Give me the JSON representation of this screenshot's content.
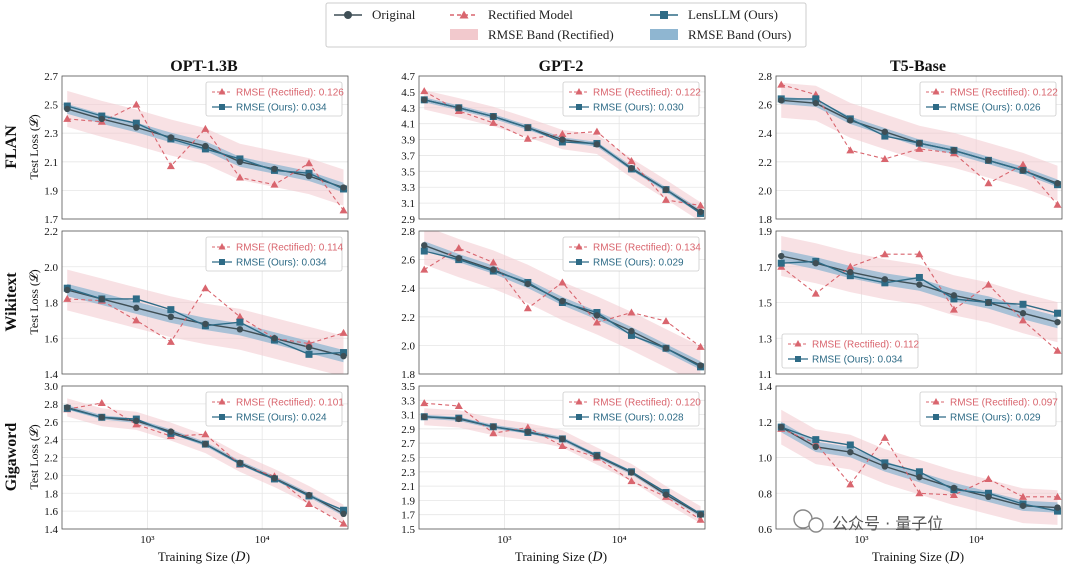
{
  "legend": {
    "original": "Original",
    "rectified": "Rectified Model",
    "lens": "LensLLM (Ours)",
    "band_rect": "RMSE Band (Rectified)",
    "band_ours": "RMSE Band (Ours)"
  },
  "columns": [
    "OPT-1.3B",
    "GPT-2",
    "T5-Base"
  ],
  "rows": [
    "FLAN",
    "Wikitext",
    "Gigaword"
  ],
  "y_label": "Test Loss (𝓛)",
  "x_label": "Training Size (𝐷)",
  "x_tick_labels": [
    "10³",
    "10⁴"
  ],
  "watermark": "公众号 · 量子位",
  "colors": {
    "original": "#3f4f56",
    "rectified": "#d9656e",
    "lens": "#2e6b86",
    "band_rect": "#f2c9cd",
    "band_ours": "#8fb6d1"
  },
  "chart_data": [
    {
      "type": "line",
      "row": "FLAN",
      "col": "OPT-1.3B",
      "ylim": [
        1.7,
        2.7
      ],
      "yticks": [
        "1.7",
        "1.9",
        "2.1",
        "2.3",
        "2.5",
        "2.7"
      ],
      "rmse_rect_label": "RMSE (Rectified): 0.126",
      "rmse_ours_label": "RMSE (Ours): 0.034",
      "legend_loc": "top-right",
      "band_rect": 0.126,
      "band_ours": 0.034,
      "x": [
        200,
        400,
        800,
        1600,
        3200,
        6400,
        12800,
        25600,
        51200
      ],
      "series": [
        {
          "name": "Original",
          "values": [
            2.47,
            2.4,
            2.34,
            2.27,
            2.21,
            2.1,
            2.05,
            2.0,
            1.92
          ]
        },
        {
          "name": "Rectified Model",
          "values": [
            2.4,
            2.38,
            2.5,
            2.07,
            2.33,
            1.99,
            1.94,
            2.09,
            1.76
          ]
        },
        {
          "name": "LensLLM (Ours)",
          "values": [
            2.49,
            2.42,
            2.37,
            2.26,
            2.19,
            2.12,
            2.04,
            2.02,
            1.91
          ]
        }
      ]
    },
    {
      "type": "line",
      "row": "FLAN",
      "col": "GPT-2",
      "ylim": [
        2.9,
        4.7
      ],
      "yticks": [
        "2.9",
        "3.1",
        "3.3",
        "3.5",
        "3.7",
        "3.9",
        "4.1",
        "4.3",
        "4.5",
        "4.7"
      ],
      "rmse_rect_label": "RMSE (Rectified): 0.122",
      "rmse_ours_label": "RMSE (Ours): 0.030",
      "legend_loc": "top-right",
      "band_rect": 0.122,
      "band_ours": 0.03,
      "x": [
        200,
        400,
        800,
        1600,
        3200,
        6400,
        12800,
        25600,
        51200
      ],
      "series": [
        {
          "name": "Original",
          "values": [
            4.4,
            4.3,
            4.19,
            4.05,
            3.9,
            3.84,
            3.54,
            3.27,
            2.99
          ]
        },
        {
          "name": "Rectified Model",
          "values": [
            4.51,
            4.26,
            4.11,
            3.91,
            3.97,
            4.0,
            3.63,
            3.14,
            3.07
          ]
        },
        {
          "name": "LensLLM (Ours)",
          "values": [
            4.4,
            4.3,
            4.19,
            4.05,
            3.87,
            3.85,
            3.53,
            3.27,
            2.97
          ]
        }
      ]
    },
    {
      "type": "line",
      "row": "FLAN",
      "col": "T5-Base",
      "ylim": [
        1.8,
        2.8
      ],
      "yticks": [
        "1.8",
        "2.0",
        "2.2",
        "2.4",
        "2.6",
        "2.8"
      ],
      "rmse_rect_label": "RMSE (Rectified): 0.122",
      "rmse_ours_label": "RMSE (Ours): 0.026",
      "legend_loc": "top-right",
      "band_rect": 0.122,
      "band_ours": 0.026,
      "x": [
        200,
        400,
        800,
        1600,
        3200,
        6400,
        12800,
        25600,
        51200
      ],
      "series": [
        {
          "name": "Original",
          "values": [
            2.63,
            2.61,
            2.49,
            2.41,
            2.33,
            2.28,
            2.21,
            2.14,
            2.05
          ]
        },
        {
          "name": "Rectified Model",
          "values": [
            2.74,
            2.67,
            2.28,
            2.22,
            2.29,
            2.26,
            2.05,
            2.18,
            1.9
          ]
        },
        {
          "name": "LensLLM (Ours)",
          "values": [
            2.64,
            2.64,
            2.5,
            2.38,
            2.33,
            2.28,
            2.21,
            2.14,
            2.04
          ]
        }
      ]
    },
    {
      "type": "line",
      "row": "Wikitext",
      "col": "OPT-1.3B",
      "ylim": [
        1.4,
        2.2
      ],
      "yticks": [
        "1.4",
        "1.6",
        "1.8",
        "2.0",
        "2.2"
      ],
      "rmse_rect_label": "RMSE (Rectified): 0.114",
      "rmse_ours_label": "RMSE (Ours): 0.034",
      "legend_loc": "top-right",
      "band_rect": 0.114,
      "band_ours": 0.034,
      "x": [
        200,
        400,
        800,
        1600,
        3200,
        6400,
        12800,
        25600,
        51200
      ],
      "series": [
        {
          "name": "Original",
          "values": [
            1.87,
            1.82,
            1.77,
            1.72,
            1.68,
            1.65,
            1.6,
            1.55,
            1.5
          ]
        },
        {
          "name": "Rectified Model",
          "values": [
            1.82,
            1.81,
            1.7,
            1.58,
            1.88,
            1.72,
            1.6,
            1.57,
            1.63
          ]
        },
        {
          "name": "LensLLM (Ours)",
          "values": [
            1.88,
            1.82,
            1.82,
            1.76,
            1.67,
            1.69,
            1.59,
            1.51,
            1.52
          ]
        }
      ]
    },
    {
      "type": "line",
      "row": "Wikitext",
      "col": "GPT-2",
      "ylim": [
        1.8,
        2.8
      ],
      "yticks": [
        "1.8",
        "2.0",
        "2.2",
        "2.4",
        "2.6",
        "2.8"
      ],
      "rmse_rect_label": "RMSE (Rectified): 0.134",
      "rmse_ours_label": "RMSE (Ours): 0.029",
      "legend_loc": "top-right",
      "band_rect": 0.134,
      "band_ours": 0.029,
      "x": [
        200,
        400,
        800,
        1600,
        3200,
        6400,
        12800,
        25600,
        51200
      ],
      "series": [
        {
          "name": "Original",
          "values": [
            2.7,
            2.61,
            2.53,
            2.43,
            2.31,
            2.21,
            2.1,
            1.98,
            1.86
          ]
        },
        {
          "name": "Rectified Model",
          "values": [
            2.53,
            2.68,
            2.58,
            2.26,
            2.44,
            2.16,
            2.23,
            2.17,
            1.99
          ]
        },
        {
          "name": "LensLLM (Ours)",
          "values": [
            2.66,
            2.6,
            2.52,
            2.44,
            2.3,
            2.23,
            2.07,
            1.98,
            1.85
          ]
        }
      ]
    },
    {
      "type": "line",
      "row": "Wikitext",
      "col": "T5-Base",
      "ylim": [
        1.1,
        1.9
      ],
      "yticks": [
        "1.1",
        "1.3",
        "1.5",
        "1.7",
        "1.9"
      ],
      "rmse_rect_label": "RMSE (Rectified): 0.112",
      "rmse_ours_label": "RMSE (Ours): 0.034",
      "legend_loc": "bottom-left",
      "band_rect": 0.112,
      "band_ours": 0.034,
      "x": [
        200,
        400,
        800,
        1600,
        3200,
        6400,
        12800,
        25600,
        51200
      ],
      "series": [
        {
          "name": "Original",
          "values": [
            1.76,
            1.72,
            1.67,
            1.63,
            1.6,
            1.54,
            1.5,
            1.44,
            1.39
          ]
        },
        {
          "name": "Rectified Model",
          "values": [
            1.7,
            1.55,
            1.7,
            1.77,
            1.77,
            1.46,
            1.6,
            1.4,
            1.23
          ]
        },
        {
          "name": "LensLLM (Ours)",
          "values": [
            1.72,
            1.73,
            1.65,
            1.61,
            1.64,
            1.52,
            1.5,
            1.49,
            1.44
          ]
        }
      ]
    },
    {
      "type": "line",
      "row": "Gigaword",
      "col": "OPT-1.3B",
      "ylim": [
        1.4,
        3.0
      ],
      "yticks": [
        "1.4",
        "1.6",
        "1.8",
        "2.0",
        "2.2",
        "2.4",
        "2.6",
        "2.8",
        "3.0"
      ],
      "rmse_rect_label": "RMSE (Rectified): 0.101",
      "rmse_ours_label": "RMSE (Ours): 0.024",
      "legend_loc": "top-right",
      "band_rect": 0.101,
      "band_ours": 0.024,
      "x": [
        200,
        400,
        800,
        1600,
        3200,
        6400,
        12800,
        25600,
        51200
      ],
      "series": [
        {
          "name": "Original",
          "values": [
            2.76,
            2.65,
            2.61,
            2.49,
            2.35,
            2.14,
            1.97,
            1.78,
            1.57
          ]
        },
        {
          "name": "Rectified Model",
          "values": [
            2.74,
            2.81,
            2.57,
            2.44,
            2.46,
            2.12,
            1.99,
            1.68,
            1.46
          ]
        },
        {
          "name": "LensLLM (Ours)",
          "values": [
            2.75,
            2.65,
            2.63,
            2.47,
            2.35,
            2.13,
            1.96,
            1.77,
            1.61
          ]
        }
      ]
    },
    {
      "type": "line",
      "row": "Gigaword",
      "col": "GPT-2",
      "ylim": [
        1.5,
        3.5
      ],
      "yticks": [
        "1.5",
        "1.7",
        "1.9",
        "2.1",
        "2.3",
        "2.5",
        "2.7",
        "2.9",
        "3.1",
        "3.3",
        "3.5"
      ],
      "rmse_rect_label": "RMSE (Rectified): 0.120",
      "rmse_ours_label": "RMSE (Ours): 0.028",
      "legend_loc": "top-right",
      "band_rect": 0.12,
      "band_ours": 0.028,
      "x": [
        200,
        400,
        800,
        1600,
        3200,
        6400,
        12800,
        25600,
        51200
      ],
      "series": [
        {
          "name": "Original",
          "values": [
            3.07,
            3.04,
            2.93,
            2.86,
            2.76,
            2.52,
            2.29,
            1.98,
            1.7
          ]
        },
        {
          "name": "Rectified Model",
          "values": [
            3.26,
            3.22,
            2.84,
            2.92,
            2.66,
            2.5,
            2.17,
            1.95,
            1.63
          ]
        },
        {
          "name": "LensLLM (Ours)",
          "values": [
            3.07,
            3.05,
            2.93,
            2.85,
            2.76,
            2.53,
            2.3,
            2.01,
            1.71
          ]
        }
      ]
    },
    {
      "type": "line",
      "row": "Gigaword",
      "col": "T5-Base",
      "ylim": [
        0.6,
        1.4
      ],
      "yticks": [
        "0.6",
        "0.8",
        "1.0",
        "1.2",
        "1.4"
      ],
      "rmse_rect_label": "RMSE (Rectified): 0.097",
      "rmse_ours_label": "RMSE (Ours): 0.029",
      "legend_loc": "top-right",
      "band_rect": 0.097,
      "band_ours": 0.029,
      "x": [
        200,
        400,
        800,
        1600,
        3200,
        6400,
        12800,
        25600,
        51200
      ],
      "series": [
        {
          "name": "Original",
          "values": [
            1.17,
            1.06,
            1.03,
            0.95,
            0.89,
            0.83,
            0.78,
            0.73,
            0.72
          ]
        },
        {
          "name": "Rectified Model",
          "values": [
            1.16,
            1.08,
            0.85,
            1.11,
            0.8,
            0.79,
            0.88,
            0.78,
            0.78
          ]
        },
        {
          "name": "LensLLM (Ours)",
          "values": [
            1.17,
            1.1,
            1.07,
            0.97,
            0.92,
            0.82,
            0.8,
            0.74,
            0.7
          ]
        }
      ]
    }
  ]
}
